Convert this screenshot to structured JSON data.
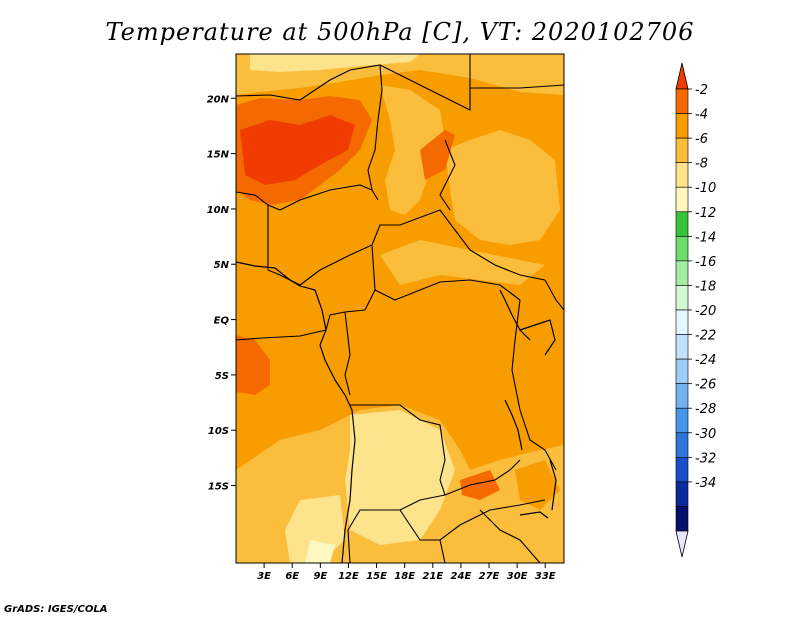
{
  "title": "Temperature at 500hPa [C], VT: 2020102706",
  "credit": "GrADS: IGES/COLA",
  "map": {
    "lon_range": [
      0,
      35
    ],
    "lat_range": [
      -22,
      24
    ],
    "x_ticks": [
      "3E",
      "6E",
      "9E",
      "12E",
      "15E",
      "18E",
      "21E",
      "24E",
      "27E",
      "30E",
      "33E"
    ],
    "y_ticks": [
      "20N",
      "15N",
      "10N",
      "5N",
      "EQ",
      "5S",
      "10S",
      "15S"
    ]
  },
  "colorbar": {
    "labels": [
      "-2",
      "-4",
      "-6",
      "-8",
      "-10",
      "-12",
      "-14",
      "-16",
      "-18",
      "-20",
      "-22",
      "-24",
      "-26",
      "-28",
      "-30",
      "-32",
      "-34"
    ],
    "colors": [
      "#f03c00",
      "#f46a00",
      "#f89d00",
      "#fbbd3c",
      "#fde38c",
      "#fff7c0",
      "#36c43a",
      "#6ddc6a",
      "#a3eea3",
      "#d4f8d4",
      "#e6f6ff",
      "#bfe1fb",
      "#9ccdf6",
      "#72b2ef",
      "#4596e8",
      "#2f75dc",
      "#1c4fc7",
      "#0b2a9e",
      "#060f6e",
      "#e8e6fa"
    ]
  }
}
